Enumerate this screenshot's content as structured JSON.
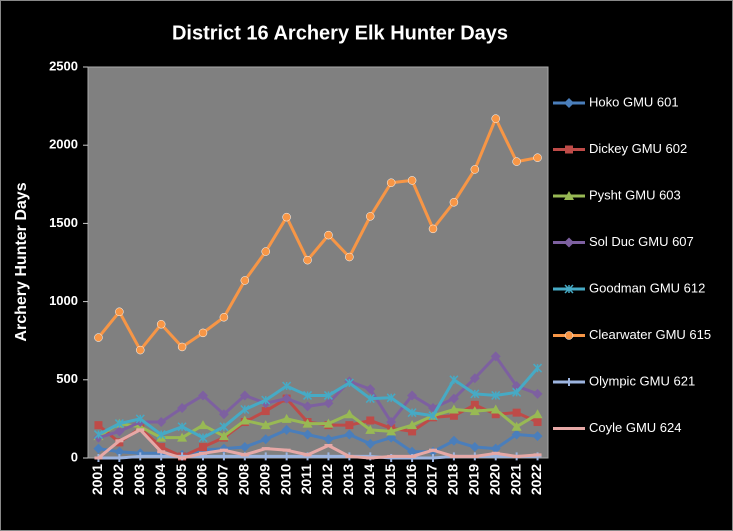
{
  "chart_data": {
    "type": "line",
    "title": "District 16 Archery Elk Hunter Days",
    "y_label": "Archery Hunter Days",
    "categories": [
      "2001",
      "2002",
      "2003",
      "2004",
      "2005",
      "2006",
      "2007",
      "2008",
      "2009",
      "2010",
      "2011",
      "2012",
      "2013",
      "2014",
      "2015",
      "2016",
      "2017",
      "2018",
      "2019",
      "2020",
      "2021",
      "2022"
    ],
    "ylim": [
      0,
      2500
    ],
    "yticks": [
      0,
      500,
      1000,
      1500,
      2000,
      2500
    ],
    "grid": false,
    "legend": "right",
    "series": [
      {
        "name": "Hoko GMU 601",
        "color": "#4a7ebb",
        "marker": "diamond",
        "values": [
          60,
          40,
          30,
          30,
          20,
          50,
          60,
          70,
          120,
          180,
          150,
          120,
          150,
          90,
          130,
          40,
          40,
          110,
          70,
          60,
          150,
          140
        ]
      },
      {
        "name": "Dickey GMU 602",
        "color": "#be4b48",
        "marker": "square",
        "values": [
          210,
          100,
          190,
          70,
          10,
          70,
          130,
          230,
          300,
          380,
          230,
          210,
          210,
          240,
          190,
          170,
          260,
          270,
          340,
          280,
          290,
          230
        ]
      },
      {
        "name": "Pysht GMU 603",
        "color": "#98b954",
        "marker": "triangle",
        "values": [
          140,
          220,
          200,
          130,
          130,
          210,
          140,
          240,
          210,
          250,
          220,
          220,
          280,
          180,
          170,
          210,
          270,
          310,
          300,
          310,
          200,
          280
        ]
      },
      {
        "name": "Sol Duc GMU 607",
        "color": "#7d60a0",
        "marker": "diamond",
        "values": [
          130,
          170,
          230,
          230,
          320,
          400,
          280,
          400,
          350,
          380,
          330,
          350,
          490,
          440,
          230,
          400,
          320,
          380,
          510,
          650,
          460,
          410
        ]
      },
      {
        "name": "Goodman GMU 612",
        "color": "#46aac5",
        "marker": "star",
        "values": [
          150,
          220,
          250,
          150,
          200,
          130,
          200,
          310,
          370,
          460,
          400,
          400,
          480,
          380,
          385,
          290,
          270,
          500,
          410,
          400,
          420,
          575
        ]
      },
      {
        "name": "Clearwater GMU 615",
        "color": "#f79646",
        "marker": "circle",
        "values": [
          770,
          935,
          690,
          855,
          710,
          800,
          900,
          1135,
          1320,
          1540,
          1265,
          1425,
          1285,
          1545,
          1760,
          1775,
          1465,
          1635,
          1845,
          2170,
          1895,
          1920
        ]
      },
      {
        "name": "Olympic GMU 621",
        "color": "#9db5e0",
        "marker": "plus",
        "values": [
          0,
          0,
          10,
          10,
          10,
          10,
          10,
          10,
          10,
          10,
          10,
          10,
          10,
          10,
          0,
          0,
          0,
          10,
          10,
          10,
          10,
          10
        ]
      },
      {
        "name": "Coyle GMU 624",
        "color": "#e6a8a6",
        "marker": "dash",
        "values": [
          0,
          110,
          180,
          40,
          0,
          30,
          50,
          20,
          60,
          50,
          20,
          80,
          10,
          0,
          10,
          10,
          50,
          10,
          10,
          30,
          10,
          20
        ]
      }
    ]
  }
}
